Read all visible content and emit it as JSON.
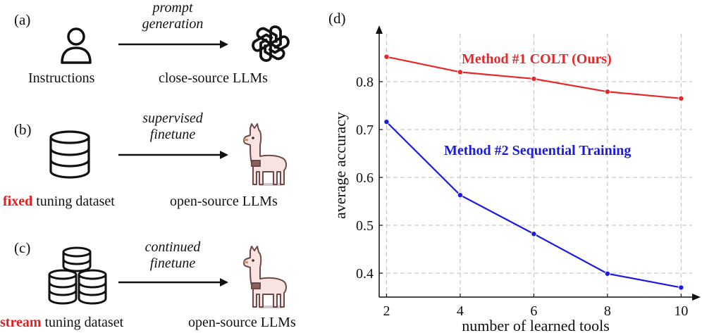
{
  "panel_a": {
    "label": "(a)",
    "arrow_text_line1": "prompt",
    "arrow_text_line2": "generation",
    "left_caption": "Instructions",
    "right_caption": "close-source LLMs",
    "left_icon": "user-icon",
    "right_icon": "openai-logo-icon"
  },
  "panel_b": {
    "label": "(b)",
    "arrow_text_line1": "supervised",
    "arrow_text_line2": "finetune",
    "left_caption_highlight": "fixed",
    "left_caption_rest": " tuning dataset",
    "right_caption": "open-source LLMs",
    "left_icon": "database-icon",
    "right_icon": "llama-icon"
  },
  "panel_c": {
    "label": "(c)",
    "arrow_text_line1": "continued",
    "arrow_text_line2": "finetune",
    "left_caption_highlight": "stream",
    "left_caption_rest": " tuning dataset",
    "right_caption": "open-source LLMs",
    "left_icon": "database-stack-icon",
    "right_icon": "llama-icon"
  },
  "panel_d": {
    "label": "(d)"
  },
  "colors": {
    "highlight": "#e02020",
    "series1": "#e82828",
    "series2": "#1a1ae0",
    "grid": "#bdbdbd",
    "llama_body": "#f9e3e1",
    "llama_dark": "#6b4a49"
  },
  "chart_data": {
    "type": "line",
    "title": "",
    "xlabel": "number of learned tools",
    "ylabel": "average accuracy",
    "xlim": [
      1.8,
      10.3
    ],
    "ylim": [
      0.35,
      0.9
    ],
    "xticks": [
      2,
      4,
      6,
      8,
      10
    ],
    "yticks": [
      0.4,
      0.5,
      0.6,
      0.7,
      0.8
    ],
    "grid": true,
    "series": [
      {
        "name": "Method #1 COLT (Ours)",
        "color": "#e82828",
        "x": [
          2,
          4,
          6,
          8,
          10
        ],
        "y": [
          0.852,
          0.82,
          0.806,
          0.779,
          0.765
        ]
      },
      {
        "name": "Method #2 Sequential Training",
        "color": "#1a1ae0",
        "x": [
          2,
          4,
          6,
          8,
          10
        ],
        "y": [
          0.716,
          0.563,
          0.482,
          0.399,
          0.37
        ]
      }
    ]
  }
}
